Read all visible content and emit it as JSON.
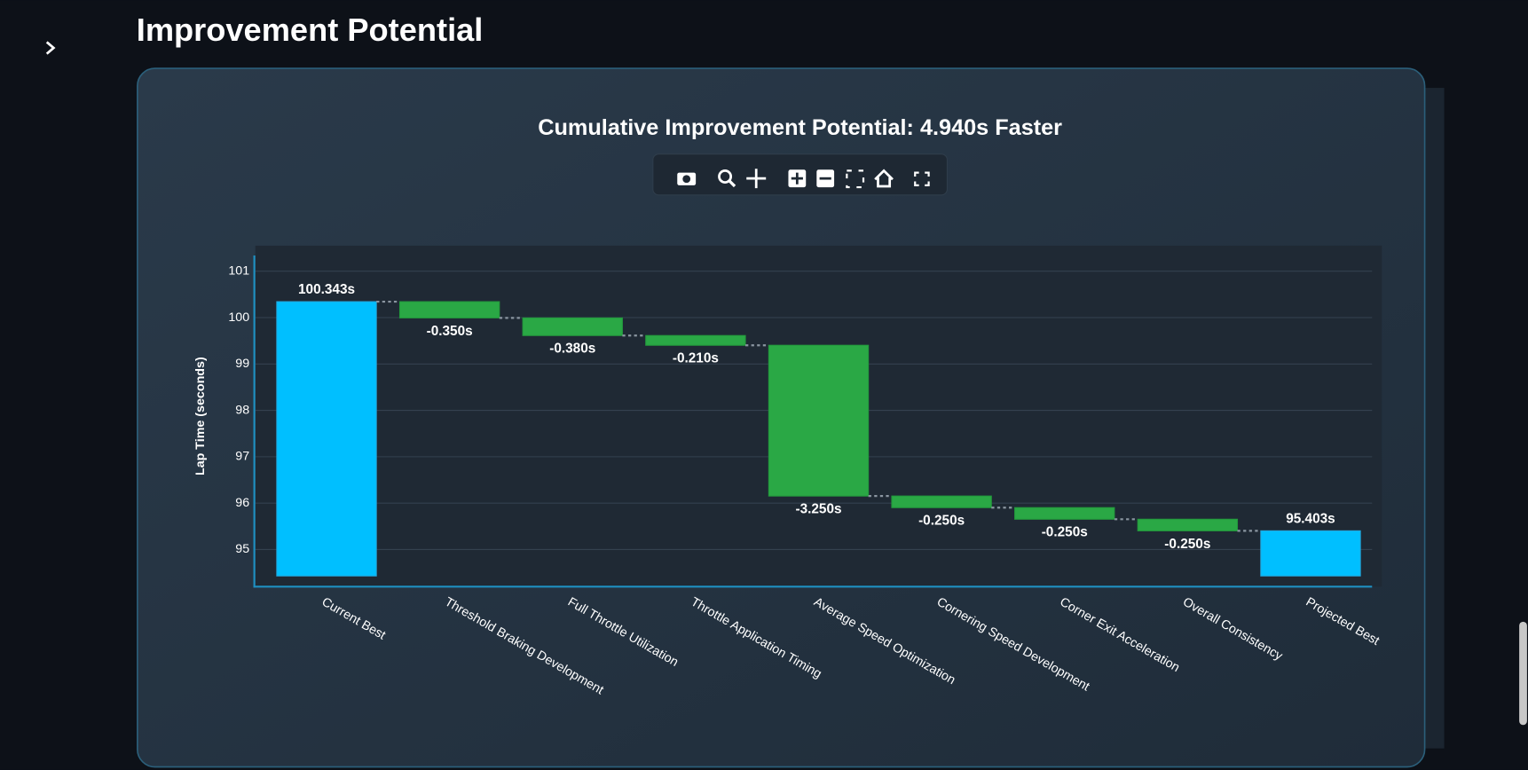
{
  "page": {
    "heading": "Improvement Potential"
  },
  "chart_data": {
    "type": "waterfall",
    "title": "Cumulative Improvement Potential: 4.940s Faster",
    "y_label": "Lap Time (seconds)",
    "categories": [
      "Current Best",
      "Threshold Braking Development",
      "Full Throttle Utilization",
      "Throttle Application Timing",
      "Average Speed Optimization",
      "Cornering Speed Development",
      "Corner Exit Acceleration",
      "Overall Consistency",
      "Projected Best"
    ],
    "measures": [
      "absolute",
      "relative",
      "relative",
      "relative",
      "relative",
      "relative",
      "relative",
      "relative",
      "total"
    ],
    "values": [
      100.343,
      -0.35,
      -0.38,
      -0.21,
      -3.25,
      -0.25,
      -0.25,
      -0.25,
      95.403
    ],
    "value_labels": [
      "100.343s",
      "-0.350s",
      "-0.380s",
      "-0.210s",
      "-3.250s",
      "-0.250s",
      "-0.250s",
      "-0.250s",
      "95.403s"
    ],
    "colors": {
      "total": "#00bfff",
      "decrease": "#2aa845"
    },
    "ylim": [
      94.43,
      101.34
    ],
    "yticks": [
      95,
      96,
      97,
      98,
      99,
      100,
      101
    ],
    "grid": true
  }
}
